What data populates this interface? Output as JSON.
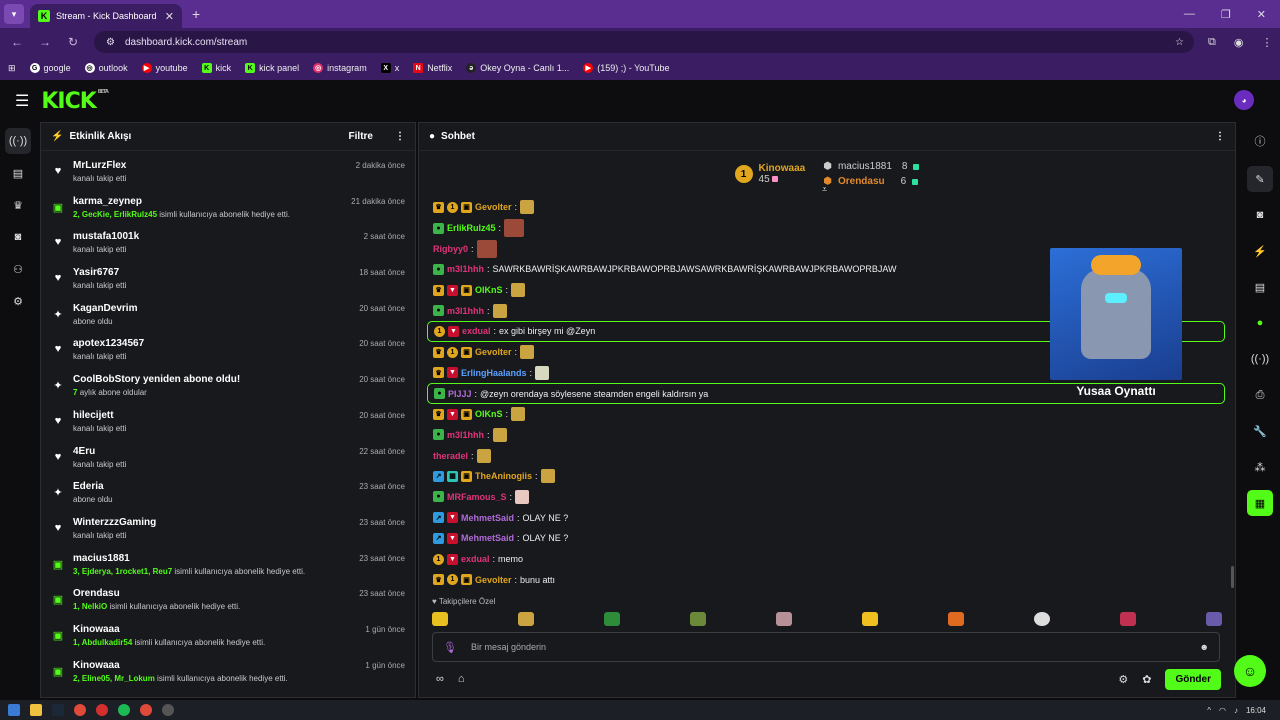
{
  "browser": {
    "tab_title": "Stream - Kick Dashboard",
    "url": "dashboard.kick.com/stream",
    "bookmarks": [
      "google",
      "outlook",
      "youtube",
      "kick",
      "kick panel",
      "instagram",
      "x",
      "Netflix",
      "Okey Oyna - Canlı 1...",
      "(159) ;) - YouTube"
    ]
  },
  "brand": {
    "logo": "KICK",
    "beta": "BETA"
  },
  "activity": {
    "title": "Etkinlik Akışı",
    "filter_label": "Filtre",
    "items": [
      {
        "kind": "heart",
        "name": "MrLurzFlex",
        "sub": "kanalı takip etti",
        "time": "2 dakika önce"
      },
      {
        "kind": "gift",
        "name": "karma_zeynep",
        "users": "2, GecKie, ErlikRulz45",
        "sub": "isimli kullanıcıya abonelik hediye etti.",
        "time": "21 dakika önce"
      },
      {
        "kind": "heart",
        "name": "mustafa1001k",
        "sub": "kanalı takip etti",
        "time": "2 saat önce"
      },
      {
        "kind": "heart",
        "name": "Yasir6767",
        "sub": "kanalı takip etti",
        "time": "18 saat önce"
      },
      {
        "kind": "star",
        "name": "KaganDevrim",
        "sub": "abone oldu",
        "time": "20 saat önce"
      },
      {
        "kind": "heart",
        "name": "apotex1234567",
        "sub": "kanalı takip etti",
        "time": "20 saat önce"
      },
      {
        "kind": "star",
        "name": "CoolBobStory yeniden abone oldu!",
        "users": "7",
        "sub": "aylık abone oldular",
        "time": "20 saat önce"
      },
      {
        "kind": "heart",
        "name": "hilecijett",
        "sub": "kanalı takip etti",
        "time": "20 saat önce"
      },
      {
        "kind": "heart",
        "name": "4Eru",
        "sub": "kanalı takip etti",
        "time": "22 saat önce"
      },
      {
        "kind": "star",
        "name": "Ederia",
        "sub": "abone oldu",
        "time": "23 saat önce"
      },
      {
        "kind": "heart",
        "name": "WinterzzzGaming",
        "sub": "kanalı takip etti",
        "time": "23 saat önce"
      },
      {
        "kind": "gift",
        "name": "macius1881",
        "users": "3, Ejderya, 1rocket1, Reu7",
        "sub": "isimli kullanıcıya abonelik hediye etti.",
        "time": "23 saat önce"
      },
      {
        "kind": "gift",
        "name": "Orendasu",
        "users": "1, NelkiO",
        "sub": "isimli kullanıcıya abonelik hediye etti.",
        "time": "23 saat önce"
      },
      {
        "kind": "gift",
        "name": "Kinowaaa",
        "users": "1, Abdulkadir54",
        "sub": "isimli kullanıcıya abonelik hediye etti.",
        "time": "1 gün önce"
      },
      {
        "kind": "gift",
        "name": "Kinowaaa",
        "users": "2, Eline05, Mr_Lokum",
        "sub": "isimli kullanıcıya abonelik hediye etti.",
        "time": "1 gün önce"
      }
    ]
  },
  "chat": {
    "title": "Sohbet",
    "leaderboard": {
      "first": {
        "rank": "1",
        "name": "Kinowaaa",
        "count": "45"
      },
      "second": {
        "name": "macius1881",
        "count": "8"
      },
      "third": {
        "name": "Orendasu",
        "count": "6"
      }
    },
    "messages": [
      {
        "badges": [
          "crown",
          "one",
          "gift"
        ],
        "user": "Gevolter",
        "color": "#e0a61e",
        "text": "",
        "emote": "#c9a441",
        "hl": false
      },
      {
        "badges": [
          "frog"
        ],
        "user": "ErlikRulz45",
        "color": "#53fc18",
        "text": "",
        "emote": "#9b4a3a",
        "hl": false
      },
      {
        "badges": [],
        "user": "Rigbyy0",
        "color": "#e0337a",
        "text": "",
        "emote": "#9b4a3a",
        "hl": false
      },
      {
        "badges": [
          "frog"
        ],
        "user": "m3l1hhh",
        "color": "#e0337a",
        "text": "SAWRKBAWRİŞKAWRBAWJPKRBAWOPRBJAWSAWRKBAWRİŞKAWRBAWJPKRBAWOPRBJAW",
        "emote": "",
        "hl": false
      },
      {
        "badges": [
          "crown",
          "dev",
          "gift"
        ],
        "user": "OlKnS",
        "color": "#53fc18",
        "text": "",
        "emote": "#c9a441",
        "hl": false
      },
      {
        "badges": [
          "frog"
        ],
        "user": "m3l1hhh",
        "color": "#e0337a",
        "text": "",
        "emote": "#c9a441",
        "hl": false
      },
      {
        "badges": [
          "one",
          "dev"
        ],
        "user": "exdual",
        "color": "#e0337a",
        "text": "ex gibi birşey mi @Zeyn",
        "emote": "",
        "hl": true
      },
      {
        "badges": [
          "crown",
          "one",
          "gift"
        ],
        "user": "Gevolter",
        "color": "#e0a61e",
        "text": "",
        "emote": "#c9a441",
        "hl": false
      },
      {
        "badges": [
          "crown",
          "dev"
        ],
        "user": "ErlingHaalands",
        "color": "#5aa0ff",
        "text": "",
        "emote": "#d8d8c0",
        "hl": false
      },
      {
        "badges": [
          "frog"
        ],
        "user": "PIJJJ",
        "color": "#b06ad8",
        "text": "@zeyn orendaya söylesene steamden engeli kaldırsın ya",
        "emote": "",
        "hl": true
      },
      {
        "badges": [
          "crown",
          "dev",
          "gift"
        ],
        "user": "OlKnS",
        "color": "#53fc18",
        "text": "",
        "emote": "#c9a441",
        "hl": false
      },
      {
        "badges": [
          "frog"
        ],
        "user": "m3l1hhh",
        "color": "#e0337a",
        "text": "",
        "emote": "#c9a441",
        "hl": false
      },
      {
        "badges": [],
        "user": "theradel",
        "color": "#e0337a",
        "text": "",
        "emote": "#c9a441",
        "hl": false
      },
      {
        "badges": [
          "blue",
          "teal",
          "gift"
        ],
        "user": "TheAninogiis",
        "color": "#e0a61e",
        "text": "",
        "emote": "#c9a441",
        "hl": false
      },
      {
        "badges": [
          "frog"
        ],
        "user": "MRFamous_S",
        "color": "#e0337a",
        "text": "",
        "emote": "#e8c8c0",
        "hl": false
      },
      {
        "badges": [
          "blue",
          "dev"
        ],
        "user": "MehmetSaid",
        "color": "#b06ad8",
        "text": "OLAY NE ?",
        "emote": "",
        "hl": false
      },
      {
        "badges": [
          "blue",
          "dev"
        ],
        "user": "MehmetSaid",
        "color": "#b06ad8",
        "text": "OLAY NE ?",
        "emote": "",
        "hl": false
      },
      {
        "badges": [
          "one",
          "dev"
        ],
        "user": "exdual",
        "color": "#e0337a",
        "text": "memo",
        "emote": "",
        "hl": false
      },
      {
        "badges": [
          "crown",
          "one",
          "gift"
        ],
        "user": "Gevolter",
        "color": "#e0a61e",
        "text": "bunu attı",
        "emote": "",
        "hl": false
      }
    ],
    "overlay_caption": "Yusaa Oynattı",
    "followers_only_label": "Takipçilere Özel",
    "input_placeholder": "Bir mesaj gönderin",
    "send_label": "Gönder"
  },
  "taskbar": {
    "time": "16:04"
  }
}
